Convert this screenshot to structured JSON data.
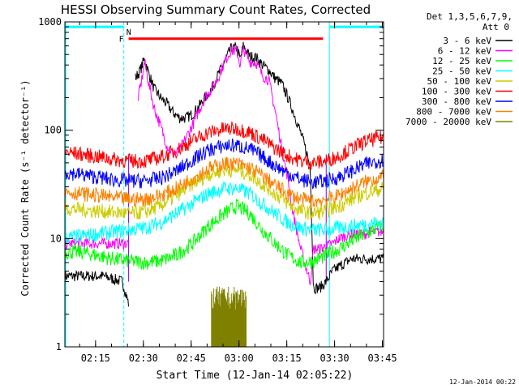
{
  "chart_data": {
    "type": "line",
    "title": "HESSI Observing Summary Count Rates, Corrected",
    "xlabel": "Start Time (12-Jan-14 02:05:22)",
    "ylabel": "Corrected Count Rate (s⁻¹ detector⁻¹)",
    "x_unit": "minutes after 02:05:22 UT",
    "xlim": [
      0,
      100
    ],
    "ylim": [
      1,
      1000
    ],
    "yscale": "log",
    "xticks": [
      {
        "t": 9.63,
        "label": "02:15"
      },
      {
        "t": 24.63,
        "label": "02:30"
      },
      {
        "t": 39.63,
        "label": "02:45"
      },
      {
        "t": 54.63,
        "label": "03:00"
      },
      {
        "t": 69.63,
        "label": "03:15"
      },
      {
        "t": 84.63,
        "label": "03:30"
      },
      {
        "t": 99.63,
        "label": "03:45"
      }
    ],
    "yticks": [
      {
        "v": 1,
        "label": "1"
      },
      {
        "v": 10,
        "label": "10"
      },
      {
        "v": 100,
        "label": "100"
      },
      {
        "v": 1000,
        "label": "1000"
      }
    ],
    "legend_header": [
      "Det 1,3,5,6,7,9,",
      "Att 0"
    ],
    "legend_position": "right",
    "series": [
      {
        "name": "3 - 6 keV",
        "color": "#000000",
        "t": [
          0,
          5,
          12,
          18,
          19,
          20,
          21,
          22,
          23,
          24,
          25,
          26,
          28,
          30,
          32,
          34,
          36,
          38,
          40,
          42,
          44,
          46,
          48,
          50,
          52,
          54,
          55,
          56,
          58,
          60,
          62,
          64,
          66,
          68,
          70,
          72,
          74,
          76,
          77,
          78,
          80,
          82,
          84,
          86,
          88,
          90,
          92,
          94,
          96,
          98,
          100
        ],
        "v": [
          4.5,
          4.5,
          4.5,
          4,
          3.2,
          2.5,
          null,
          300,
          330,
          380,
          460,
          360,
          240,
          200,
          175,
          145,
          130,
          130,
          140,
          165,
          200,
          240,
          320,
          420,
          560,
          580,
          450,
          600,
          480,
          470,
          400,
          360,
          300,
          270,
          200,
          140,
          95,
          60,
          45,
          3.5,
          3.5,
          4,
          5,
          5.5,
          6,
          6.5,
          6.5,
          6.5,
          6.5,
          6.5,
          6.5
        ]
      },
      {
        "name": "6 - 12 keV",
        "color": "#ff00ff",
        "t": [
          0,
          5,
          12,
          18,
          20,
          22,
          23,
          24,
          25,
          26,
          28,
          30,
          32,
          34,
          36,
          38,
          40,
          42,
          44,
          46,
          48,
          50,
          52,
          54,
          55,
          56,
          58,
          60,
          62,
          64,
          66,
          68,
          70,
          71,
          72,
          74,
          76,
          77,
          78,
          80,
          82,
          84,
          86,
          88,
          90,
          92,
          94,
          96,
          98,
          100
        ],
        "v": [
          9,
          9,
          9,
          9,
          9,
          null,
          200,
          280,
          430,
          300,
          160,
          110,
          72,
          60,
          65,
          85,
          110,
          150,
          200,
          240,
          300,
          420,
          540,
          540,
          400,
          560,
          430,
          420,
          320,
          290,
          150,
          70,
          35,
          22,
          15,
          8,
          5,
          4,
          8,
          8,
          8.5,
          9,
          10,
          10.5,
          11,
          11,
          11,
          11.5,
          11.5,
          11.5
        ]
      },
      {
        "name": "12 - 25 keV",
        "color": "#00ff00",
        "t": [
          0,
          5,
          10,
          15,
          20,
          25,
          30,
          35,
          40,
          45,
          50,
          54,
          58,
          62,
          66,
          70,
          74,
          78,
          82,
          86,
          90,
          94,
          98,
          100
        ],
        "v": [
          7.5,
          7.5,
          7,
          6.5,
          6.2,
          6,
          6.2,
          7,
          9,
          13,
          17,
          20,
          17,
          12,
          9,
          7,
          6,
          6.2,
          7,
          8,
          9.5,
          11,
          12.5,
          13
        ]
      },
      {
        "name": "25 - 50 keV",
        "color": "#00ffff",
        "t": [
          0,
          5,
          10,
          15,
          20,
          25,
          30,
          35,
          40,
          45,
          50,
          54,
          58,
          62,
          66,
          70,
          74,
          78,
          82,
          86,
          90,
          94,
          98,
          100
        ],
        "v": [
          10,
          10.5,
          11,
          11.5,
          12,
          12.5,
          14,
          17,
          21,
          26,
          29,
          29,
          26,
          21,
          17,
          14,
          12.5,
          12,
          12,
          12.5,
          13,
          13.5,
          14,
          14
        ]
      },
      {
        "name": "50 - 100 keV",
        "color": "#cccc00",
        "t": [
          0,
          5,
          10,
          15,
          20,
          25,
          30,
          35,
          40,
          45,
          50,
          54,
          58,
          62,
          66,
          70,
          74,
          78,
          82,
          86,
          90,
          94,
          98,
          100
        ],
        "v": [
          19,
          18.5,
          18,
          17.5,
          17,
          17.5,
          20,
          25,
          32,
          39,
          43,
          43,
          39,
          32,
          26,
          21,
          18,
          17,
          18,
          20,
          23,
          26,
          28,
          29
        ]
      },
      {
        "name": "100 - 300 keV",
        "color": "#ff0000",
        "t": [
          0,
          5,
          10,
          15,
          20,
          25,
          30,
          35,
          40,
          45,
          50,
          54,
          58,
          62,
          66,
          70,
          74,
          78,
          82,
          86,
          90,
          94,
          98,
          100
        ],
        "v": [
          63,
          60,
          57,
          54,
          52,
          52,
          56,
          65,
          80,
          95,
          103,
          103,
          96,
          82,
          68,
          58,
          52,
          50,
          52,
          58,
          68,
          78,
          84,
          86
        ]
      },
      {
        "name": "300 - 800 keV",
        "color": "#0000ff",
        "t": [
          0,
          5,
          10,
          15,
          20,
          25,
          30,
          35,
          40,
          45,
          50,
          54,
          58,
          62,
          66,
          70,
          74,
          78,
          82,
          86,
          90,
          94,
          98,
          100
        ],
        "v": [
          41,
          39,
          37,
          35,
          34,
          34,
          36,
          42,
          53,
          65,
          72,
          72,
          67,
          57,
          47,
          40,
          35,
          33,
          34,
          37,
          42,
          48,
          52,
          53
        ]
      },
      {
        "name": "800 - 7000 keV",
        "color": "#ff8000",
        "t": [
          0,
          5,
          10,
          15,
          20,
          25,
          30,
          35,
          40,
          45,
          50,
          54,
          58,
          62,
          66,
          70,
          74,
          78,
          82,
          86,
          90,
          94,
          98,
          100
        ],
        "v": [
          27,
          26,
          25,
          24,
          23,
          23,
          25,
          29,
          36,
          44,
          49,
          49,
          45,
          38,
          31,
          26,
          23,
          22,
          23,
          25,
          29,
          33,
          36,
          37
        ]
      },
      {
        "name": "7000 - 20000 keV",
        "color": "#808000",
        "t": [
          0,
          46,
          46,
          57,
          57,
          100
        ],
        "v": [
          null,
          null,
          2.2,
          2.2,
          null,
          null
        ]
      }
    ],
    "annotations": {
      "night_periods": [
        [
          0,
          18.5
        ],
        [
          83,
          100
        ]
      ],
      "night_color": "#00ffff",
      "night_bar_level": 900,
      "flare_bar": {
        "label": "F",
        "start": 20,
        "end": 81,
        "level": 700,
        "color": "#ff0000"
      },
      "n_label": "N",
      "attenuator_markers": [
        20,
        82
      ]
    }
  },
  "timestamp": "12-Jan-2014 00:22"
}
